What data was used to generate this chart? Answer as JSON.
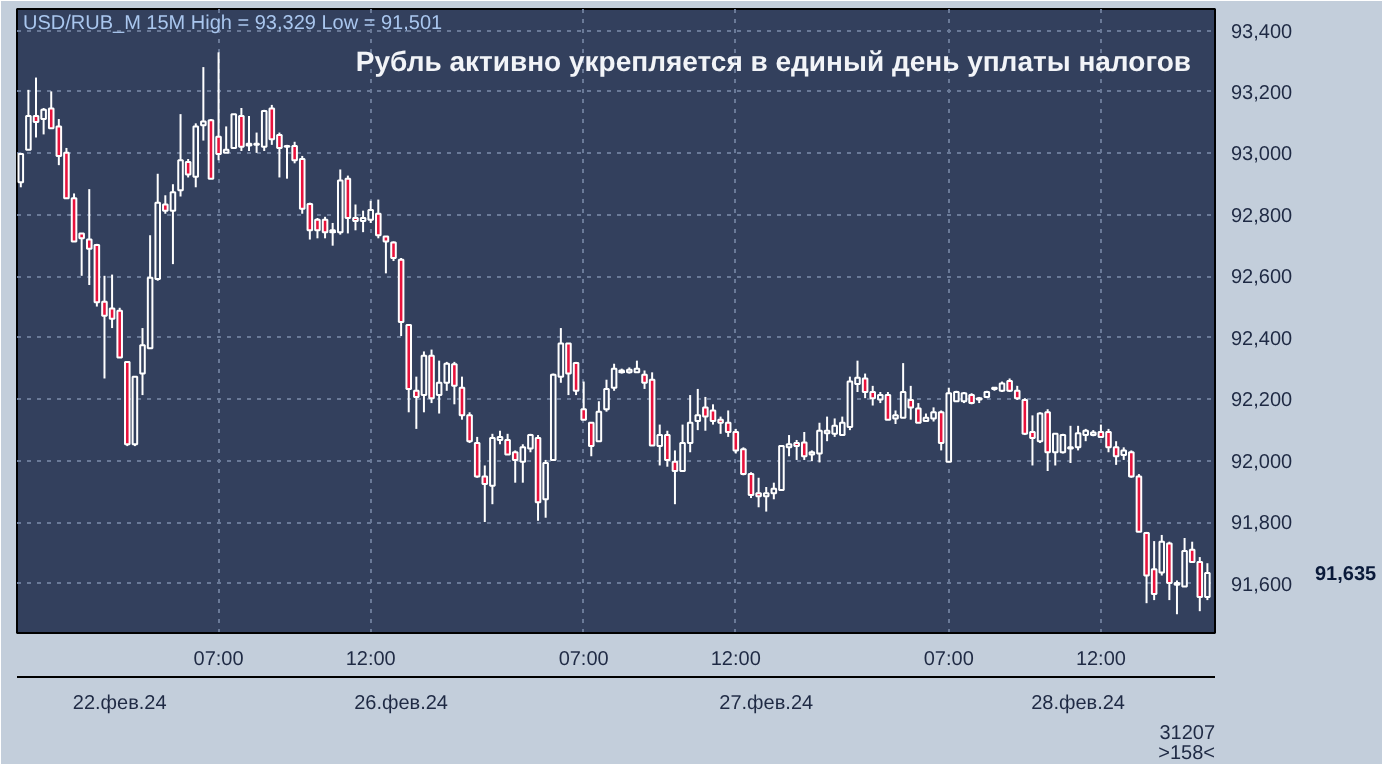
{
  "chart_data": {
    "type": "candlestick",
    "title": "Рубль активно укрепляется в единый день уплаты налогов",
    "subtitle": "USD/RUB_M 15M High = 93,329 Low = 91,501",
    "annotations": [
      "91,635",
      "22.фев.24",
      "26.фев.24",
      "27.фев.24",
      "28.фев.24",
      "31207",
      ">158<"
    ],
    "categories": [
      null,
      null,
      null,
      null,
      null,
      null,
      null,
      null,
      null,
      null,
      null,
      null,
      null,
      null,
      null,
      null,
      null,
      null,
      null,
      null,
      null,
      null,
      null,
      null,
      null,
      null,
      "07:00",
      null,
      null,
      null,
      null,
      null,
      null,
      null,
      null,
      null,
      null,
      null,
      null,
      null,
      null,
      null,
      null,
      null,
      null,
      null,
      "12:00",
      null,
      null,
      null,
      null,
      null,
      null,
      null,
      null,
      null,
      null,
      null,
      null,
      null,
      null,
      null,
      null,
      null,
      null,
      null,
      null,
      null,
      null,
      null,
      null,
      null,
      null,
      null,
      "07:00",
      null,
      null,
      null,
      null,
      null,
      null,
      null,
      null,
      null,
      null,
      null,
      null,
      null,
      null,
      null,
      null,
      null,
      null,
      null,
      "12:00",
      null,
      null,
      null,
      null,
      null,
      null,
      null,
      null,
      null,
      null,
      null,
      null,
      null,
      null,
      null,
      null,
      null,
      null,
      null,
      null,
      null,
      null,
      null,
      null,
      null,
      null,
      null,
      "07:00",
      null,
      null,
      null,
      null,
      null,
      null,
      null,
      null,
      null,
      null,
      null,
      null,
      null,
      null,
      null,
      null,
      null,
      null,
      null,
      "12:00",
      null,
      null,
      null,
      null,
      null,
      null,
      null,
      null,
      null,
      null,
      null,
      null,
      null,
      null
    ],
    "ylim": [
      91440,
      93470
    ],
    "yticks": [
      {
        "value": 91600,
        "label": "91,600"
      },
      {
        "value": 91800,
        "label": "91,800"
      },
      {
        "value": 92000,
        "label": "92,000"
      },
      {
        "value": 92200,
        "label": "92,200"
      },
      {
        "value": 92400,
        "label": "92,400"
      },
      {
        "value": 92600,
        "label": "92,600"
      },
      {
        "value": 92800,
        "label": "92,800"
      },
      {
        "value": 93000,
        "label": "93,000"
      },
      {
        "value": 93200,
        "label": "93,200"
      },
      {
        "value": 93400,
        "label": "93,400"
      }
    ],
    "grid": true,
    "ohlc": [
      [
        92906,
        93002,
        92890,
        92998
      ],
      [
        93012,
        93207,
        93012,
        93122
      ],
      [
        93122,
        93247,
        93052,
        93102
      ],
      [
        93112,
        93148,
        93062,
        93142
      ],
      [
        93146,
        93202,
        93082,
        93082
      ],
      [
        93088,
        93112,
        92962,
        92992
      ],
      [
        93002,
        93018,
        92854,
        92854
      ],
      [
        92854,
        92870,
        92714,
        92714
      ],
      [
        92740,
        92740,
        92602,
        92724
      ],
      [
        92720,
        92884,
        92572,
        92690
      ],
      [
        92702,
        92706,
        92502,
        92516
      ],
      [
        92518,
        92602,
        92268,
        92472
      ],
      [
        92496,
        92606,
        92432,
        92462
      ],
      [
        92488,
        92498,
        92336,
        92336
      ],
      [
        92322,
        92322,
        92048,
        92054
      ],
      [
        92054,
        92274,
        92048,
        92274
      ],
      [
        92284,
        92432,
        92214,
        92376
      ],
      [
        92366,
        92734,
        92366,
        92596
      ],
      [
        92592,
        92934,
        92586,
        92840
      ],
      [
        92834,
        92864,
        92804,
        92814
      ],
      [
        92814,
        92900,
        92640,
        92874
      ],
      [
        92880,
        93128,
        92860,
        92978
      ],
      [
        92972,
        92982,
        92922,
        92932
      ],
      [
        92924,
        93098,
        92890,
        93088
      ],
      [
        93092,
        93281,
        93042,
        93104
      ],
      [
        93108,
        93112,
        92918,
        92918
      ],
      [
        93054,
        93329,
        92978,
        92998
      ],
      [
        93002,
        93088,
        93002,
        93012
      ],
      [
        93018,
        93128,
        93018,
        93128
      ],
      [
        93122,
        93148,
        93008,
        93022
      ],
      [
        93026,
        93122,
        93008,
        93032
      ],
      [
        93028,
        93068,
        93002,
        93032
      ],
      [
        93022,
        93142,
        93008,
        93138
      ],
      [
        93146,
        93158,
        93028,
        93046
      ],
      [
        93060,
        93068,
        92922,
        93018
      ],
      [
        93022,
        93028,
        92918,
        93024
      ],
      [
        93024,
        93038,
        92968,
        92978
      ],
      [
        92982,
        92992,
        92804,
        92820
      ],
      [
        92836,
        92840,
        92720,
        92750
      ],
      [
        92784,
        92790,
        92724,
        92750
      ],
      [
        92784,
        92794,
        92724,
        92744
      ],
      [
        92744,
        92774,
        92700,
        92750
      ],
      [
        92744,
        92948,
        92736,
        92912
      ],
      [
        92918,
        92928,
        92740,
        92790
      ],
      [
        92790,
        92834,
        92750,
        92780
      ],
      [
        92780,
        92814,
        92744,
        92790
      ],
      [
        92784,
        92846,
        92774,
        92816
      ],
      [
        92804,
        92850,
        92724,
        92734
      ],
      [
        92730,
        92730,
        92610,
        92714
      ],
      [
        92710,
        92714,
        92650,
        92660
      ],
      [
        92654,
        92660,
        92406,
        92452
      ],
      [
        92442,
        92442,
        92158,
        92234
      ],
      [
        92228,
        92274,
        92104,
        92208
      ],
      [
        92214,
        92356,
        92158,
        92342
      ],
      [
        92342,
        92362,
        92188,
        92204
      ],
      [
        92214,
        92326,
        92154,
        92254
      ],
      [
        92254,
        92322,
        92228,
        92316
      ],
      [
        92314,
        92322,
        92184,
        92244
      ],
      [
        92238,
        92274,
        92134,
        92148
      ],
      [
        92148,
        92158,
        92058,
        92064
      ],
      [
        92058,
        92078,
        91945,
        91949
      ],
      [
        91949,
        91985,
        91801,
        91925
      ],
      [
        91919,
        92088,
        91859,
        92074
      ],
      [
        92068,
        92098,
        92054,
        92078
      ],
      [
        92068,
        92088,
        92021,
        92021
      ],
      [
        92028,
        92034,
        91929,
        92003
      ],
      [
        91997,
        92054,
        91929,
        92044
      ],
      [
        92040,
        92088,
        92028,
        92084
      ],
      [
        92074,
        92084,
        91805,
        91865
      ],
      [
        91875,
        92003,
        91815,
        91993
      ],
      [
        92003,
        92284,
        92003,
        92280
      ],
      [
        92274,
        92432,
        92254,
        92382
      ],
      [
        92382,
        92382,
        92214,
        92284
      ],
      [
        92318,
        92322,
        92214,
        92228
      ],
      [
        92168,
        92258,
        92134,
        92134
      ],
      [
        92124,
        92124,
        92015,
        92048
      ],
      [
        92064,
        92194,
        92064,
        92160
      ],
      [
        92168,
        92264,
        92160,
        92234
      ],
      [
        92238,
        92316,
        92228,
        92300
      ],
      [
        92288,
        92300,
        92284,
        92294
      ],
      [
        92288,
        92304,
        92284,
        92296
      ],
      [
        92288,
        92326,
        92288,
        92300
      ],
      [
        92280,
        92294,
        92234,
        92254
      ],
      [
        92264,
        92288,
        92050,
        92050
      ],
      [
        92048,
        92118,
        91985,
        92084
      ],
      [
        92084,
        92098,
        91981,
        92003
      ],
      [
        91997,
        92034,
        91859,
        91967
      ],
      [
        91967,
        92118,
        91967,
        92058
      ],
      [
        92058,
        92214,
        92028,
        92124
      ],
      [
        92130,
        92234,
        92100,
        92148
      ],
      [
        92174,
        92208,
        92098,
        92144
      ],
      [
        92164,
        92184,
        92118,
        92130
      ],
      [
        92134,
        92144,
        92088,
        92124
      ],
      [
        92124,
        92164,
        92078,
        92094
      ],
      [
        92094,
        92104,
        92024,
        92034
      ],
      [
        92038,
        92044,
        91953,
        91957
      ],
      [
        91957,
        91963,
        91879,
        91889
      ],
      [
        91895,
        91945,
        91849,
        91885
      ],
      [
        91885,
        91915,
        91835,
        91895
      ],
      [
        91895,
        91929,
        91875,
        91909
      ],
      [
        91905,
        92048,
        91905,
        92048
      ],
      [
        92044,
        92084,
        92015,
        92054
      ],
      [
        92058,
        92068,
        92003,
        92048
      ],
      [
        92060,
        92094,
        92003,
        92015
      ],
      [
        92021,
        92034,
        91999,
        92028
      ],
      [
        92024,
        92124,
        91995,
        92098
      ],
      [
        92090,
        92144,
        92064,
        92098
      ],
      [
        92088,
        92138,
        92078,
        92114
      ],
      [
        92084,
        92144,
        92084,
        92124
      ],
      [
        92110,
        92274,
        92100,
        92258
      ],
      [
        92250,
        92326,
        92224,
        92270
      ],
      [
        92268,
        92284,
        92204,
        92224
      ],
      [
        92224,
        92244,
        92180,
        92204
      ],
      [
        92200,
        92224,
        92188,
        92214
      ],
      [
        92214,
        92224,
        92134,
        92134
      ],
      [
        92138,
        92164,
        92120,
        92148
      ],
      [
        92140,
        92318,
        92140,
        92224
      ],
      [
        92198,
        92244,
        92134,
        92174
      ],
      [
        92170,
        92188,
        92124,
        92124
      ],
      [
        92130,
        92154,
        92128,
        92140
      ],
      [
        92138,
        92174,
        92128,
        92158
      ],
      [
        92158,
        92164,
        92034,
        92058
      ],
      [
        91997,
        92238,
        91997,
        92220
      ],
      [
        92194,
        92228,
        92194,
        92224
      ],
      [
        92194,
        92224,
        92188,
        92220
      ],
      [
        92214,
        92220,
        92184,
        92188
      ],
      [
        92200,
        92208,
        92188,
        92204
      ],
      [
        92208,
        92228,
        92204,
        92224
      ],
      [
        92234,
        92238,
        92228,
        92238
      ],
      [
        92228,
        92258,
        92224,
        92252
      ],
      [
        92260,
        92268,
        92224,
        92228
      ],
      [
        92228,
        92244,
        92198,
        92204
      ],
      [
        92198,
        92204,
        92084,
        92088
      ],
      [
        92094,
        92148,
        91985,
        92074
      ],
      [
        92064,
        92158,
        92058,
        92154
      ],
      [
        92158,
        92168,
        91967,
        92028
      ],
      [
        92028,
        92088,
        91985,
        92088
      ],
      [
        92028,
        92088,
        92024,
        92084
      ],
      [
        92040,
        92114,
        91993,
        92044
      ],
      [
        92044,
        92114,
        92034,
        92090
      ],
      [
        92084,
        92104,
        92064,
        92098
      ],
      [
        92084,
        92100,
        92080,
        92092
      ],
      [
        92094,
        92118,
        92074,
        92078
      ],
      [
        92094,
        92104,
        92028,
        92044
      ],
      [
        92044,
        92064,
        91987,
        92015
      ],
      [
        92019,
        92044,
        92003,
        92034
      ],
      [
        92028,
        92034,
        91945,
        91949
      ],
      [
        91949,
        91957,
        91769,
        91769
      ],
      [
        91765,
        91769,
        91537,
        91627
      ],
      [
        91647,
        91739,
        91547,
        91567
      ],
      [
        91637,
        91759,
        91627,
        91737
      ],
      [
        91731,
        91737,
        91547,
        91603
      ],
      [
        91597,
        91611,
        91501,
        91603
      ],
      [
        91591,
        91749,
        91591,
        91707
      ],
      [
        91711,
        91737,
        91671,
        91671
      ],
      [
        91671,
        91687,
        91511,
        91557
      ],
      [
        91557,
        91667,
        91547,
        91635
      ]
    ]
  }
}
